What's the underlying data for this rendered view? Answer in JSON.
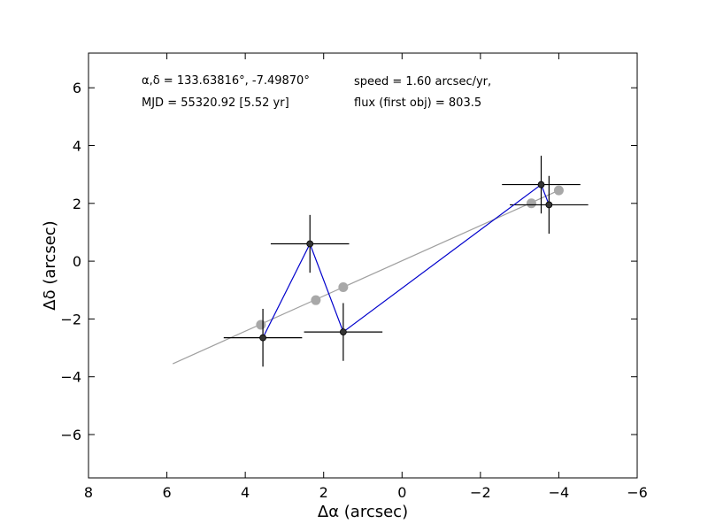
{
  "chart_data": {
    "type": "scatter",
    "xlabel": "Δα (arcsec)",
    "ylabel": "Δδ (arcsec)",
    "xlim": [
      8,
      -6
    ],
    "ylim": [
      -7.5,
      7.2
    ],
    "x_inverted": true,
    "grid": false,
    "x_ticks": [
      8,
      6,
      4,
      2,
      0,
      -2,
      -4,
      -6
    ],
    "x_tick_labels": [
      "8",
      "6",
      "4",
      "2",
      "0",
      "−2",
      "−4",
      "−6"
    ],
    "y_ticks": [
      6,
      4,
      2,
      0,
      -2,
      -4,
      -6
    ],
    "y_tick_labels": [
      "6",
      "4",
      "2",
      "0",
      "−2",
      "−4",
      "−6"
    ],
    "annotations": {
      "coords": "α,δ = 133.63816°, -7.49870°",
      "mjd": "MJD = 55320.92 [5.52 yr]",
      "speed": "speed = 1.60 arcsec/yr,",
      "flux": "flux (first obj) = 803.5"
    },
    "fit_line": {
      "color": "#a0a0a0",
      "points": [
        [
          5.85,
          -3.55
        ],
        [
          -4.0,
          2.45
        ]
      ]
    },
    "model_points": {
      "color": "#a8a8a8",
      "points": [
        [
          3.6,
          -2.2
        ],
        [
          2.2,
          -1.35
        ],
        [
          1.5,
          -0.9
        ],
        [
          -3.3,
          2.0
        ],
        [
          -4.0,
          2.45
        ]
      ]
    },
    "measured": {
      "color": "#0000cc",
      "points": [
        {
          "x": 3.55,
          "y": -2.65,
          "xerr": 1.0,
          "yerr": 1.0
        },
        {
          "x": 2.35,
          "y": 0.6,
          "xerr": 1.0,
          "yerr": 1.0
        },
        {
          "x": 1.5,
          "y": -2.45,
          "xerr": 1.0,
          "yerr": 1.0
        },
        {
          "x": -3.55,
          "y": 2.65,
          "xerr": 1.0,
          "yerr": 1.0
        },
        {
          "x": -3.75,
          "y": 1.95,
          "xerr": 1.0,
          "yerr": 1.0
        }
      ]
    }
  }
}
